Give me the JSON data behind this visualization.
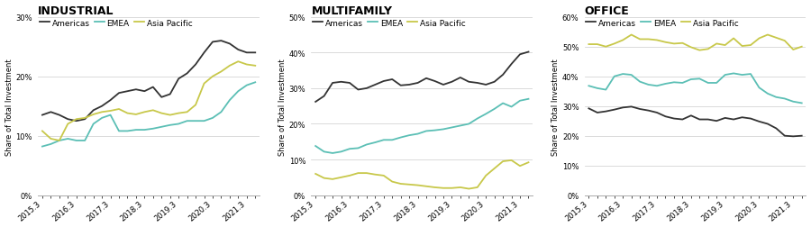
{
  "x_labels": [
    "2015.3",
    "2016.3",
    "2017.3",
    "2018.3",
    "2019.3",
    "2020.3",
    "2021.3"
  ],
  "colors": {
    "Americas": "#333333",
    "EMEA": "#5bbfb5",
    "Asia Pacific": "#c8c84a"
  },
  "industrial": {
    "title": "INDUSTRIAL",
    "ylabel": "Share of Total Investment",
    "ylim": [
      0,
      0.3
    ],
    "yticks": [
      0,
      0.1,
      0.2,
      0.3
    ],
    "Americas": [
      0.135,
      0.14,
      0.135,
      0.128,
      0.125,
      0.128,
      0.143,
      0.15,
      0.16,
      0.172,
      0.175,
      0.178,
      0.175,
      0.182,
      0.165,
      0.17,
      0.196,
      0.205,
      0.22,
      0.24,
      0.258,
      0.26,
      0.255,
      0.245,
      0.24,
      0.24
    ],
    "EMEA": [
      0.082,
      0.086,
      0.092,
      0.095,
      0.092,
      0.092,
      0.12,
      0.13,
      0.135,
      0.108,
      0.108,
      0.11,
      0.11,
      0.112,
      0.115,
      0.118,
      0.12,
      0.125,
      0.125,
      0.125,
      0.13,
      0.14,
      0.16,
      0.175,
      0.185,
      0.19
    ],
    "Asia Pacific": [
      0.108,
      0.095,
      0.092,
      0.12,
      0.128,
      0.13,
      0.136,
      0.14,
      0.142,
      0.145,
      0.138,
      0.136,
      0.14,
      0.143,
      0.138,
      0.135,
      0.138,
      0.14,
      0.152,
      0.188,
      0.2,
      0.208,
      0.218,
      0.225,
      0.22,
      0.218
    ]
  },
  "multifamily": {
    "title": "MULTIFAMILY",
    "ylabel": "Share of Total Investment",
    "ylim": [
      0,
      0.5
    ],
    "yticks": [
      0,
      0.1,
      0.2,
      0.3,
      0.4,
      0.5
    ],
    "Americas": [
      0.262,
      0.278,
      0.315,
      0.318,
      0.315,
      0.296,
      0.3,
      0.31,
      0.32,
      0.325,
      0.308,
      0.31,
      0.315,
      0.328,
      0.32,
      0.31,
      0.318,
      0.33,
      0.318,
      0.315,
      0.31,
      0.318,
      0.338,
      0.368,
      0.395,
      0.402
    ],
    "EMEA": [
      0.138,
      0.122,
      0.118,
      0.122,
      0.13,
      0.132,
      0.142,
      0.148,
      0.155,
      0.155,
      0.162,
      0.168,
      0.172,
      0.18,
      0.182,
      0.185,
      0.19,
      0.195,
      0.2,
      0.215,
      0.228,
      0.242,
      0.258,
      0.248,
      0.265,
      0.27
    ],
    "Asia Pacific": [
      0.06,
      0.048,
      0.045,
      0.05,
      0.055,
      0.062,
      0.062,
      0.058,
      0.055,
      0.038,
      0.032,
      0.03,
      0.028,
      0.025,
      0.022,
      0.02,
      0.02,
      0.022,
      0.018,
      0.022,
      0.055,
      0.075,
      0.095,
      0.098,
      0.082,
      0.092
    ]
  },
  "office": {
    "title": "OFFICE",
    "ylabel": "Share of Total Investment",
    "ylim": [
      0,
      0.6
    ],
    "yticks": [
      0,
      0.1,
      0.2,
      0.3,
      0.4,
      0.5,
      0.6
    ],
    "Americas": [
      0.292,
      0.278,
      0.282,
      0.288,
      0.295,
      0.298,
      0.29,
      0.285,
      0.278,
      0.265,
      0.258,
      0.255,
      0.268,
      0.255,
      0.255,
      0.25,
      0.26,
      0.255,
      0.262,
      0.258,
      0.248,
      0.24,
      0.225,
      0.2,
      0.198,
      0.2
    ],
    "EMEA": [
      0.368,
      0.36,
      0.355,
      0.4,
      0.408,
      0.405,
      0.382,
      0.372,
      0.368,
      0.375,
      0.38,
      0.378,
      0.39,
      0.392,
      0.378,
      0.378,
      0.405,
      0.41,
      0.405,
      0.408,
      0.362,
      0.342,
      0.33,
      0.325,
      0.315,
      0.31
    ],
    "Asia Pacific": [
      0.508,
      0.508,
      0.5,
      0.51,
      0.522,
      0.54,
      0.525,
      0.525,
      0.522,
      0.515,
      0.51,
      0.512,
      0.498,
      0.488,
      0.492,
      0.51,
      0.505,
      0.528,
      0.502,
      0.505,
      0.528,
      0.54,
      0.53,
      0.52,
      0.49,
      0.5
    ]
  },
  "background_color": "#ffffff",
  "grid_color": "#cccccc",
  "title_fontsize": 9,
  "label_fontsize": 6,
  "tick_fontsize": 6,
  "legend_fontsize": 6.5,
  "line_width": 1.3
}
